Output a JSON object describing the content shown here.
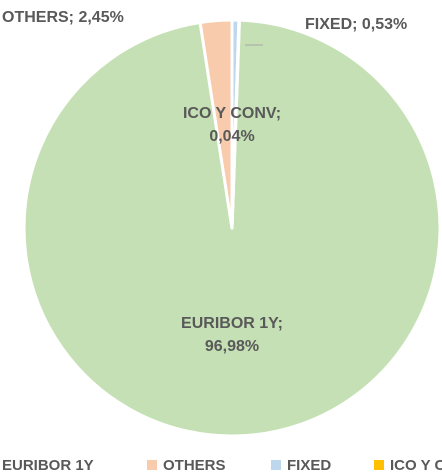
{
  "chart_data": {
    "type": "pie",
    "categories": [
      "EURIBOR 1Y",
      "OTHERS",
      "FIXED",
      "ICO Y CONV"
    ],
    "values": [
      96.98,
      2.45,
      0.53,
      0.04
    ],
    "value_labels": [
      "EURIBOR 1Y; 96,98%",
      "OTHERS; 2,45%",
      "FIXED; 0,53%",
      "ICO Y CONV; 0,04%"
    ],
    "colors": [
      "#c5e0b4",
      "#f8cbad",
      "#bdd7ee",
      "#ffc000"
    ],
    "legend": "bottom"
  }
}
